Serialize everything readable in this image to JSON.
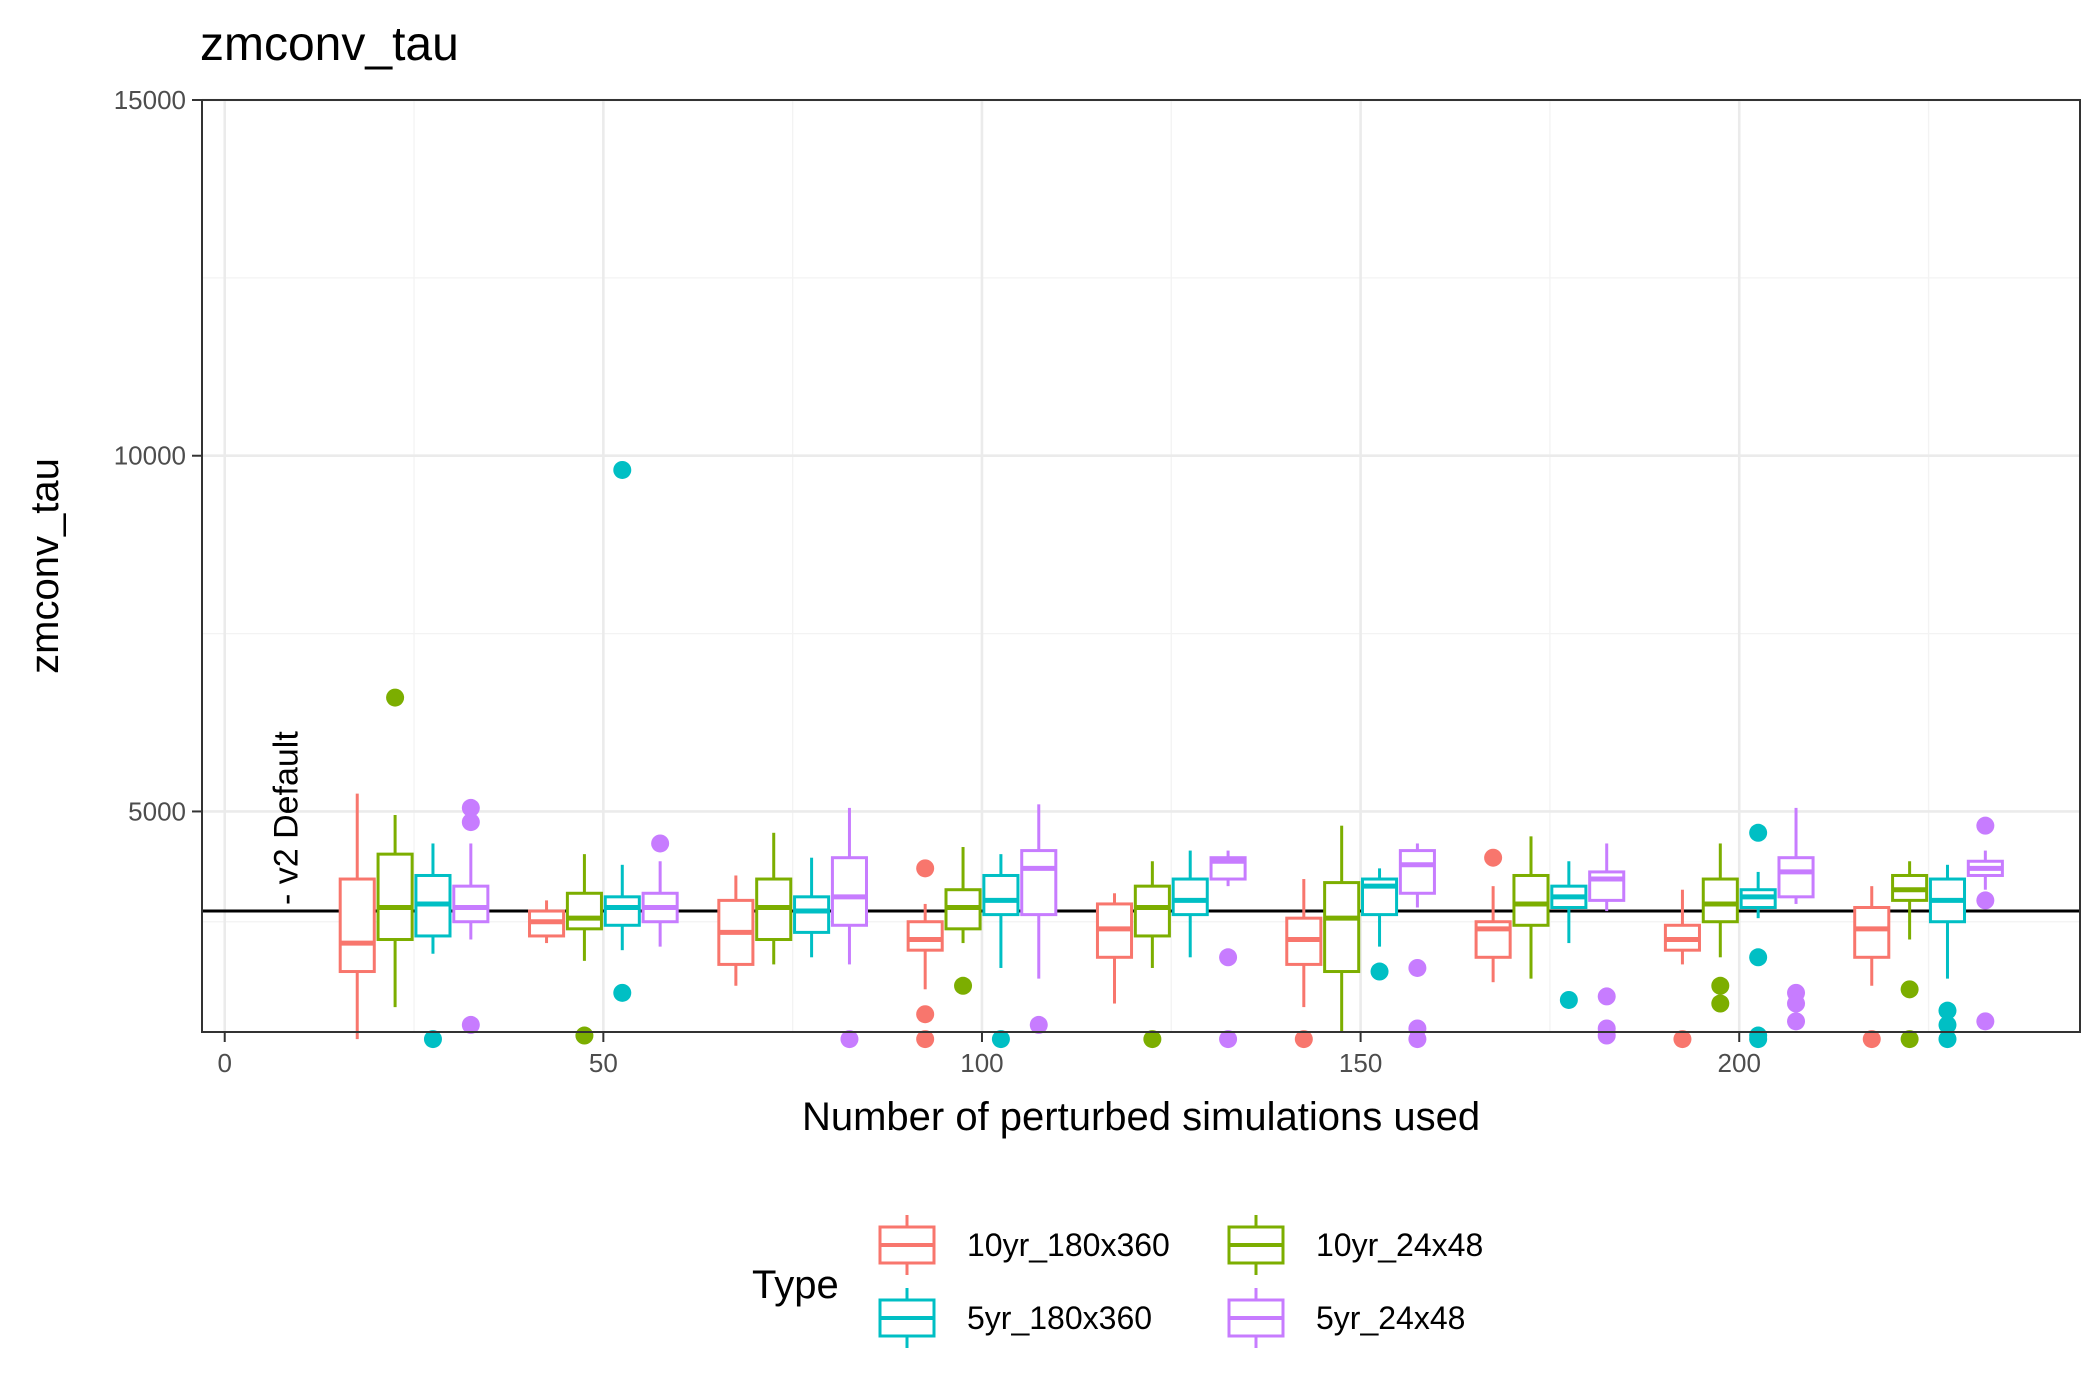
{
  "chart_data": {
    "type": "box",
    "title": "zmconv_tau",
    "xlabel": "Number of perturbed simulations used",
    "ylabel": "zmconv_tau",
    "xlim": [
      -3,
      245
    ],
    "ylim": [
      1900,
      15000
    ],
    "x_ticks": [
      0,
      50,
      100,
      150,
      200
    ],
    "y_ticks": [
      5000,
      10000,
      15000
    ],
    "grid": true,
    "reference_line": {
      "y": 3600,
      "label": "- v2 Default",
      "label_x": 8
    },
    "legend": {
      "title": "Type",
      "position": "bottom"
    },
    "series": [
      {
        "name": "10yr_180x360",
        "color": "#F8766D",
        "boxes": [
          {
            "x": 17.5,
            "lower": 1800,
            "q1": 2750,
            "median": 3150,
            "q3": 4050,
            "upper": 5250,
            "outliers": []
          },
          {
            "x": 42.5,
            "lower": 3150,
            "q1": 3250,
            "median": 3450,
            "q3": 3600,
            "upper": 3750,
            "outliers": []
          },
          {
            "x": 67.5,
            "lower": 2550,
            "q1": 2850,
            "median": 3300,
            "q3": 3750,
            "upper": 4100,
            "outliers": []
          },
          {
            "x": 92.5,
            "lower": 2500,
            "q1": 3050,
            "median": 3200,
            "q3": 3450,
            "upper": 3700,
            "outliers": [
              4200,
              2150,
              1800
            ]
          },
          {
            "x": 117.5,
            "lower": 2300,
            "q1": 2950,
            "median": 3350,
            "q3": 3700,
            "upper": 3850,
            "outliers": []
          },
          {
            "x": 142.5,
            "lower": 2250,
            "q1": 2850,
            "median": 3200,
            "q3": 3500,
            "upper": 4050,
            "outliers": [
              1800
            ]
          },
          {
            "x": 167.5,
            "lower": 2600,
            "q1": 2950,
            "median": 3350,
            "q3": 3450,
            "upper": 3950,
            "outliers": [
              4350
            ]
          },
          {
            "x": 192.5,
            "lower": 2850,
            "q1": 3050,
            "median": 3200,
            "q3": 3400,
            "upper": 3900,
            "outliers": [
              1800
            ]
          },
          {
            "x": 217.5,
            "lower": 2550,
            "q1": 2950,
            "median": 3350,
            "q3": 3650,
            "upper": 3950,
            "outliers": [
              1800
            ]
          }
        ]
      },
      {
        "name": "10yr_24x48",
        "color": "#7CAE00",
        "boxes": [
          {
            "x": 22.5,
            "lower": 2250,
            "q1": 3200,
            "median": 3650,
            "q3": 4400,
            "upper": 4950,
            "outliers": [
              6600
            ]
          },
          {
            "x": 47.5,
            "lower": 2900,
            "q1": 3350,
            "median": 3500,
            "q3": 3850,
            "upper": 4400,
            "outliers": [
              1850
            ]
          },
          {
            "x": 72.5,
            "lower": 2850,
            "q1": 3200,
            "median": 3650,
            "q3": 4050,
            "upper": 4700,
            "outliers": []
          },
          {
            "x": 97.5,
            "lower": 3150,
            "q1": 3350,
            "median": 3650,
            "q3": 3900,
            "upper": 4500,
            "outliers": [
              2550
            ]
          },
          {
            "x": 122.5,
            "lower": 2800,
            "q1": 3250,
            "median": 3650,
            "q3": 3950,
            "upper": 4300,
            "outliers": [
              1800
            ]
          },
          {
            "x": 147.5,
            "lower": 1900,
            "q1": 2750,
            "median": 3500,
            "q3": 4000,
            "upper": 4800,
            "outliers": []
          },
          {
            "x": 172.5,
            "lower": 2650,
            "q1": 3400,
            "median": 3700,
            "q3": 4100,
            "upper": 4650,
            "outliers": []
          },
          {
            "x": 197.5,
            "lower": 2950,
            "q1": 3450,
            "median": 3700,
            "q3": 4050,
            "upper": 4550,
            "outliers": [
              2550,
              2300
            ]
          },
          {
            "x": 222.5,
            "lower": 3200,
            "q1": 3750,
            "median": 3900,
            "q3": 4100,
            "upper": 4300,
            "outliers": [
              2500,
              1800
            ]
          }
        ]
      },
      {
        "name": "5yr_180x360",
        "color": "#00BFC4",
        "boxes": [
          {
            "x": 27.5,
            "lower": 3000,
            "q1": 3250,
            "median": 3700,
            "q3": 4100,
            "upper": 4550,
            "outliers": [
              1800
            ]
          },
          {
            "x": 52.5,
            "lower": 3050,
            "q1": 3400,
            "median": 3650,
            "q3": 3800,
            "upper": 4250,
            "outliers": [
              9800,
              2450
            ]
          },
          {
            "x": 77.5,
            "lower": 2950,
            "q1": 3300,
            "median": 3600,
            "q3": 3800,
            "upper": 4350,
            "outliers": []
          },
          {
            "x": 102.5,
            "lower": 2800,
            "q1": 3550,
            "median": 3750,
            "q3": 4100,
            "upper": 4400,
            "outliers": [
              1800
            ]
          },
          {
            "x": 127.5,
            "lower": 2950,
            "q1": 3550,
            "median": 3750,
            "q3": 4050,
            "upper": 4450,
            "outliers": []
          },
          {
            "x": 152.5,
            "lower": 3100,
            "q1": 3550,
            "median": 3950,
            "q3": 4050,
            "upper": 4200,
            "outliers": [
              2750
            ]
          },
          {
            "x": 177.5,
            "lower": 3150,
            "q1": 3650,
            "median": 3800,
            "q3": 3950,
            "upper": 4300,
            "outliers": [
              2350
            ]
          },
          {
            "x": 202.5,
            "lower": 3500,
            "q1": 3650,
            "median": 3800,
            "q3": 3900,
            "upper": 4150,
            "outliers": [
              4700,
              2950,
              1850,
              1800
            ]
          },
          {
            "x": 227.5,
            "lower": 2650,
            "q1": 3450,
            "median": 3750,
            "q3": 4050,
            "upper": 4250,
            "outliers": [
              2200,
              2000,
              1800
            ]
          }
        ]
      },
      {
        "name": "5yr_24x48",
        "color": "#C77CFF",
        "boxes": [
          {
            "x": 32.5,
            "lower": 3200,
            "q1": 3450,
            "median": 3650,
            "q3": 3950,
            "upper": 4550,
            "outliers": [
              5050,
              4850,
              2000
            ]
          },
          {
            "x": 57.5,
            "lower": 3100,
            "q1": 3450,
            "median": 3650,
            "q3": 3850,
            "upper": 4300,
            "outliers": [
              4550
            ]
          },
          {
            "x": 82.5,
            "lower": 2850,
            "q1": 3400,
            "median": 3800,
            "q3": 4350,
            "upper": 5050,
            "outliers": [
              1800
            ]
          },
          {
            "x": 107.5,
            "lower": 2650,
            "q1": 3550,
            "median": 4200,
            "q3": 4450,
            "upper": 5100,
            "outliers": [
              2000
            ]
          },
          {
            "x": 132.5,
            "lower": 3950,
            "q1": 4050,
            "median": 4300,
            "q3": 4350,
            "upper": 4450,
            "outliers": [
              2950,
              1800
            ]
          },
          {
            "x": 157.5,
            "lower": 3650,
            "q1": 3850,
            "median": 4250,
            "q3": 4450,
            "upper": 4550,
            "outliers": [
              2800,
              1950,
              1800
            ]
          },
          {
            "x": 182.5,
            "lower": 3600,
            "q1": 3750,
            "median": 4050,
            "q3": 4150,
            "upper": 4550,
            "outliers": [
              2400,
              1950,
              1850
            ]
          },
          {
            "x": 207.5,
            "lower": 3700,
            "q1": 3800,
            "median": 4150,
            "q3": 4350,
            "upper": 5050,
            "outliers": [
              2450,
              2300,
              2050
            ]
          },
          {
            "x": 232.5,
            "lower": 3900,
            "q1": 4100,
            "median": 4200,
            "q3": 4300,
            "upper": 4450,
            "outliers": [
              4800,
              3750,
              2050
            ]
          }
        ]
      }
    ]
  }
}
